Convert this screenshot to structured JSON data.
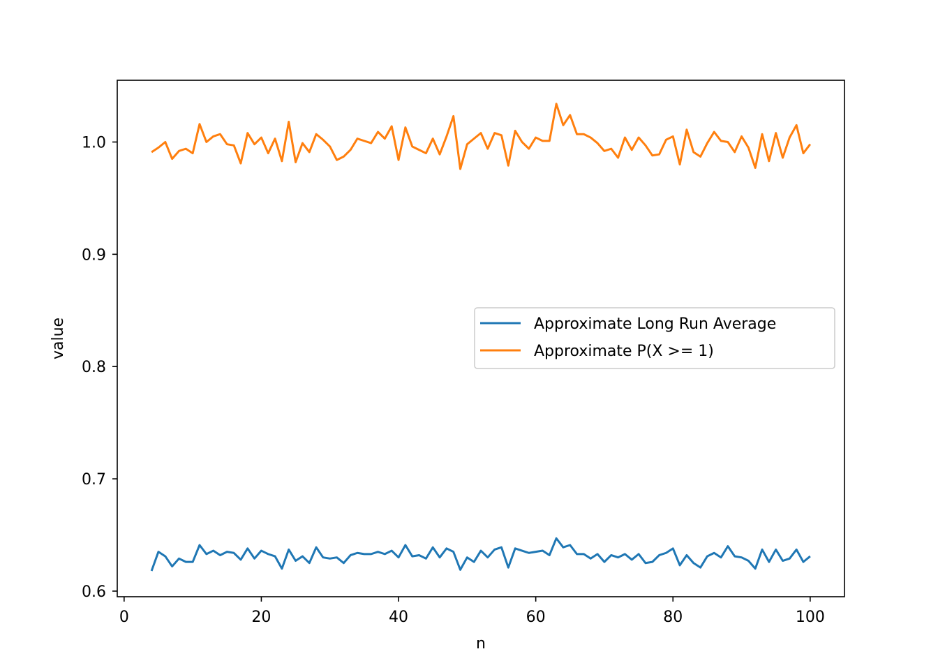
{
  "chart_data": {
    "type": "line",
    "title": "",
    "xlabel": "n",
    "ylabel": "value",
    "xlim": [
      -1,
      105
    ],
    "ylim": [
      0.595,
      1.055
    ],
    "xticks": [
      0,
      20,
      40,
      60,
      80,
      100
    ],
    "yticks": [
      0.6,
      0.7,
      0.8,
      0.9,
      1.0
    ],
    "xtick_labels": [
      "0",
      "20",
      "40",
      "60",
      "80",
      "100"
    ],
    "ytick_labels": [
      "0.6",
      "0.7",
      "0.8",
      "0.9",
      "1.0"
    ],
    "grid": false,
    "legend_position": "center-right",
    "x": [
      4,
      5,
      6,
      7,
      8,
      9,
      10,
      11,
      12,
      13,
      14,
      15,
      16,
      17,
      18,
      19,
      20,
      21,
      22,
      23,
      24,
      25,
      26,
      27,
      28,
      29,
      30,
      31,
      32,
      33,
      34,
      35,
      36,
      37,
      38,
      39,
      40,
      41,
      42,
      43,
      44,
      45,
      46,
      47,
      48,
      49,
      50,
      51,
      52,
      53,
      54,
      55,
      56,
      57,
      58,
      59,
      60,
      61,
      62,
      63,
      64,
      65,
      66,
      67,
      68,
      69,
      70,
      71,
      72,
      73,
      74,
      75,
      76,
      77,
      78,
      79,
      80,
      81,
      82,
      83,
      84,
      85,
      86,
      87,
      88,
      89,
      90,
      91,
      92,
      93,
      94,
      95,
      96,
      97,
      98,
      99,
      100
    ],
    "series": [
      {
        "name": "Approximate Long Run Average",
        "color": "#1f77b4",
        "values": [
          0.618,
          0.635,
          0.631,
          0.622,
          0.629,
          0.626,
          0.626,
          0.641,
          0.633,
          0.636,
          0.632,
          0.635,
          0.634,
          0.628,
          0.638,
          0.629,
          0.636,
          0.633,
          0.631,
          0.62,
          0.637,
          0.627,
          0.631,
          0.625,
          0.639,
          0.63,
          0.629,
          0.63,
          0.625,
          0.632,
          0.634,
          0.633,
          0.633,
          0.635,
          0.633,
          0.636,
          0.63,
          0.641,
          0.631,
          0.632,
          0.629,
          0.639,
          0.63,
          0.638,
          0.635,
          0.619,
          0.63,
          0.626,
          0.636,
          0.63,
          0.637,
          0.639,
          0.621,
          0.638,
          0.636,
          0.634,
          0.635,
          0.636,
          0.632,
          0.647,
          0.639,
          0.641,
          0.633,
          0.633,
          0.629,
          0.633,
          0.626,
          0.632,
          0.63,
          0.633,
          0.628,
          0.633,
          0.625,
          0.626,
          0.632,
          0.634,
          0.638,
          0.623,
          0.632,
          0.625,
          0.621,
          0.631,
          0.634,
          0.63,
          0.64,
          0.631,
          0.63,
          0.627,
          0.62,
          0.637,
          0.626,
          0.637,
          0.627,
          0.629,
          0.637,
          0.626,
          0.631
        ]
      },
      {
        "name": "Approximate P(X >= 1)",
        "color": "#ff7f0e",
        "values": [
          0.991,
          0.995,
          1.0,
          0.985,
          0.992,
          0.994,
          0.99,
          1.016,
          1.0,
          1.005,
          1.007,
          0.998,
          0.997,
          0.981,
          1.008,
          0.998,
          1.004,
          0.99,
          1.003,
          0.983,
          1.018,
          0.982,
          0.999,
          0.991,
          1.007,
          1.002,
          0.996,
          0.984,
          0.987,
          0.993,
          1.003,
          1.001,
          0.999,
          1.009,
          1.003,
          1.014,
          0.984,
          1.013,
          0.996,
          0.993,
          0.99,
          1.003,
          0.989,
          1.005,
          1.023,
          0.976,
          0.998,
          1.003,
          1.008,
          0.994,
          1.008,
          1.006,
          0.979,
          1.01,
          1.0,
          0.994,
          1.004,
          1.001,
          1.001,
          1.034,
          1.015,
          1.024,
          1.007,
          1.007,
          1.004,
          0.999,
          0.992,
          0.994,
          0.986,
          1.004,
          0.993,
          1.004,
          0.997,
          0.988,
          0.989,
          1.002,
          1.005,
          0.98,
          1.011,
          0.991,
          0.987,
          0.999,
          1.009,
          1.001,
          1.0,
          0.991,
          1.005,
          0.995,
          0.977,
          1.007,
          0.983,
          1.008,
          0.986,
          1.004,
          1.015,
          0.99,
          0.998
        ]
      }
    ]
  }
}
